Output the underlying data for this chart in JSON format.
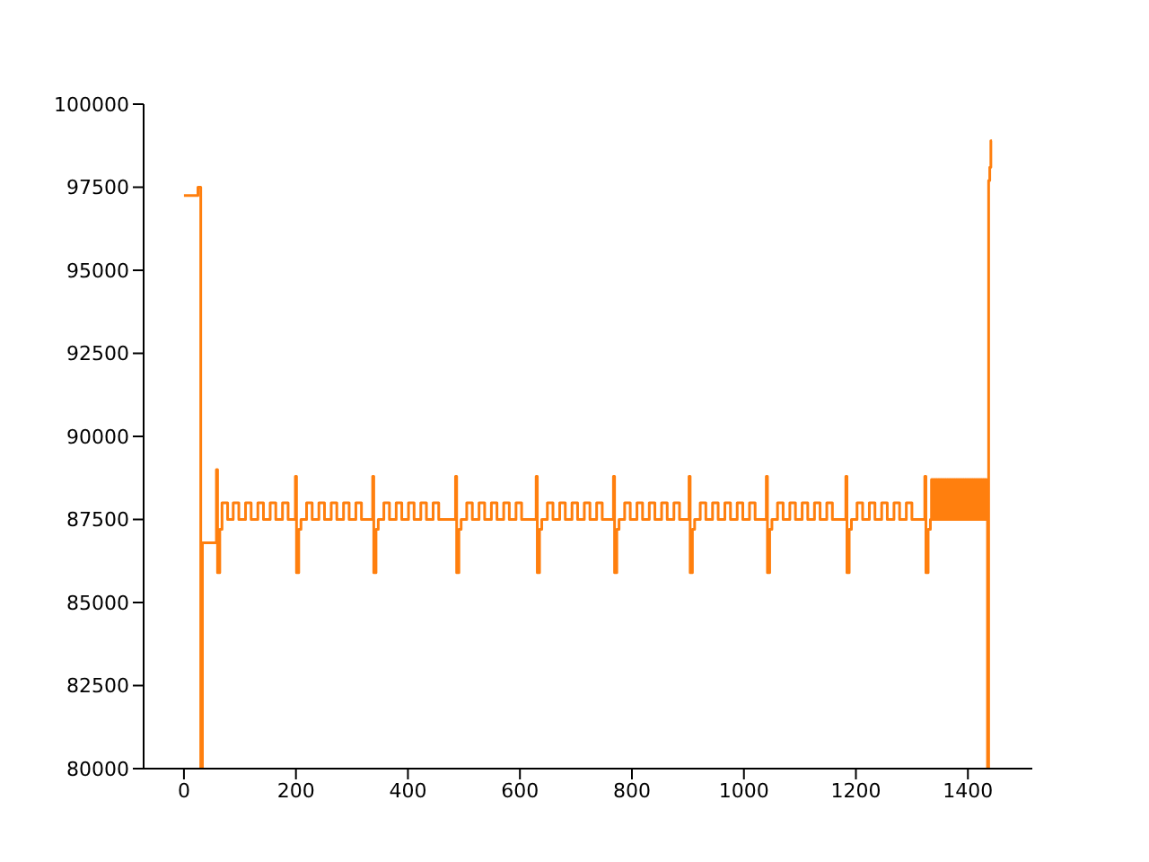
{
  "chart_data": {
    "type": "step",
    "x": [
      0,
      25,
      30,
      33,
      58,
      60,
      64,
      68,
      78,
      88,
      98,
      110,
      120,
      132,
      142,
      154,
      164,
      176,
      186,
      199,
      201,
      205,
      209,
      219,
      229,
      241,
      251,
      263,
      273,
      285,
      295,
      307,
      317,
      337,
      339,
      343,
      347,
      357,
      367,
      379,
      389,
      401,
      411,
      423,
      433,
      445,
      455,
      485,
      487,
      491,
      495,
      505,
      515,
      527,
      537,
      549,
      559,
      571,
      581,
      593,
      603,
      629,
      631,
      635,
      639,
      649,
      659,
      671,
      681,
      693,
      703,
      715,
      725,
      737,
      747,
      767,
      769,
      773,
      777,
      787,
      797,
      809,
      819,
      831,
      841,
      853,
      863,
      875,
      885,
      902,
      904,
      908,
      912,
      922,
      932,
      944,
      954,
      966,
      976,
      988,
      998,
      1010,
      1020,
      1040,
      1042,
      1046,
      1050,
      1060,
      1070,
      1082,
      1092,
      1104,
      1114,
      1126,
      1136,
      1148,
      1158,
      1182,
      1184,
      1188,
      1192,
      1202,
      1212,
      1224,
      1234,
      1246,
      1256,
      1268,
      1278,
      1290,
      1300,
      1323,
      1325,
      1329,
      1333,
      1335,
      1337,
      1339,
      1341,
      1343,
      1345,
      1347,
      1349,
      1351,
      1353,
      1355,
      1357,
      1359,
      1361,
      1363,
      1365,
      1367,
      1369,
      1371,
      1373,
      1375,
      1377,
      1379,
      1381,
      1383,
      1385,
      1387,
      1389,
      1391,
      1393,
      1395,
      1397,
      1399,
      1401,
      1403,
      1405,
      1407,
      1409,
      1411,
      1413,
      1415,
      1417,
      1419,
      1421,
      1423,
      1425,
      1427,
      1429,
      1431,
      1433,
      1435,
      1437,
      1439,
      1441,
      1443
    ],
    "series": [
      {
        "color": "#ff7f0e",
        "values": [
          97250,
          97500,
          80000,
          86800,
          89000,
          85900,
          87200,
          88000,
          87500,
          88000,
          87500,
          88000,
          87500,
          88000,
          87500,
          88000,
          87500,
          88000,
          87500,
          88800,
          85900,
          87200,
          87500,
          88000,
          87500,
          88000,
          87500,
          88000,
          87500,
          88000,
          87500,
          88000,
          87500,
          88800,
          85900,
          87200,
          87500,
          88000,
          87500,
          88000,
          87500,
          88000,
          87500,
          88000,
          87500,
          88000,
          87500,
          88800,
          85900,
          87200,
          87500,
          88000,
          87500,
          88000,
          87500,
          88000,
          87500,
          88000,
          87500,
          88000,
          87500,
          88800,
          85900,
          87200,
          87500,
          88000,
          87500,
          88000,
          87500,
          88000,
          87500,
          88000,
          87500,
          88000,
          87500,
          88800,
          85900,
          87200,
          87500,
          88000,
          87500,
          88000,
          87500,
          88000,
          87500,
          88000,
          87500,
          88000,
          87500,
          88800,
          85900,
          87200,
          87500,
          88000,
          87500,
          88000,
          87500,
          88000,
          87500,
          88000,
          87500,
          88000,
          87500,
          88800,
          85900,
          87200,
          87500,
          88000,
          87500,
          88000,
          87500,
          88000,
          87500,
          88000,
          87500,
          88000,
          87500,
          88800,
          85900,
          87200,
          87500,
          88000,
          87500,
          88000,
          87500,
          88000,
          87500,
          88000,
          87500,
          88000,
          87500,
          88800,
          85900,
          87200,
          87500,
          88700,
          87500,
          88700,
          87500,
          88700,
          87500,
          88700,
          87500,
          88700,
          87500,
          88700,
          87500,
          88700,
          87500,
          88700,
          87500,
          88700,
          87500,
          88700,
          87500,
          88700,
          87500,
          88700,
          87500,
          88700,
          87500,
          88700,
          87500,
          88700,
          87500,
          88700,
          87500,
          88700,
          87500,
          88700,
          87500,
          88700,
          87500,
          88700,
          87500,
          88700,
          87500,
          88700,
          87500,
          88700,
          87500,
          88700,
          87500,
          88700,
          87500,
          80000,
          97700,
          98100,
          98900,
          98900
        ]
      }
    ],
    "xlim": [
      -72,
      1515
    ],
    "xticks": [
      0,
      200,
      400,
      600,
      800,
      1000,
      1200,
      1400
    ],
    "ylim": [
      80000,
      100000
    ],
    "yticks": [
      80000,
      82500,
      85000,
      87500,
      90000,
      92500,
      95000,
      97500,
      100000
    ]
  }
}
